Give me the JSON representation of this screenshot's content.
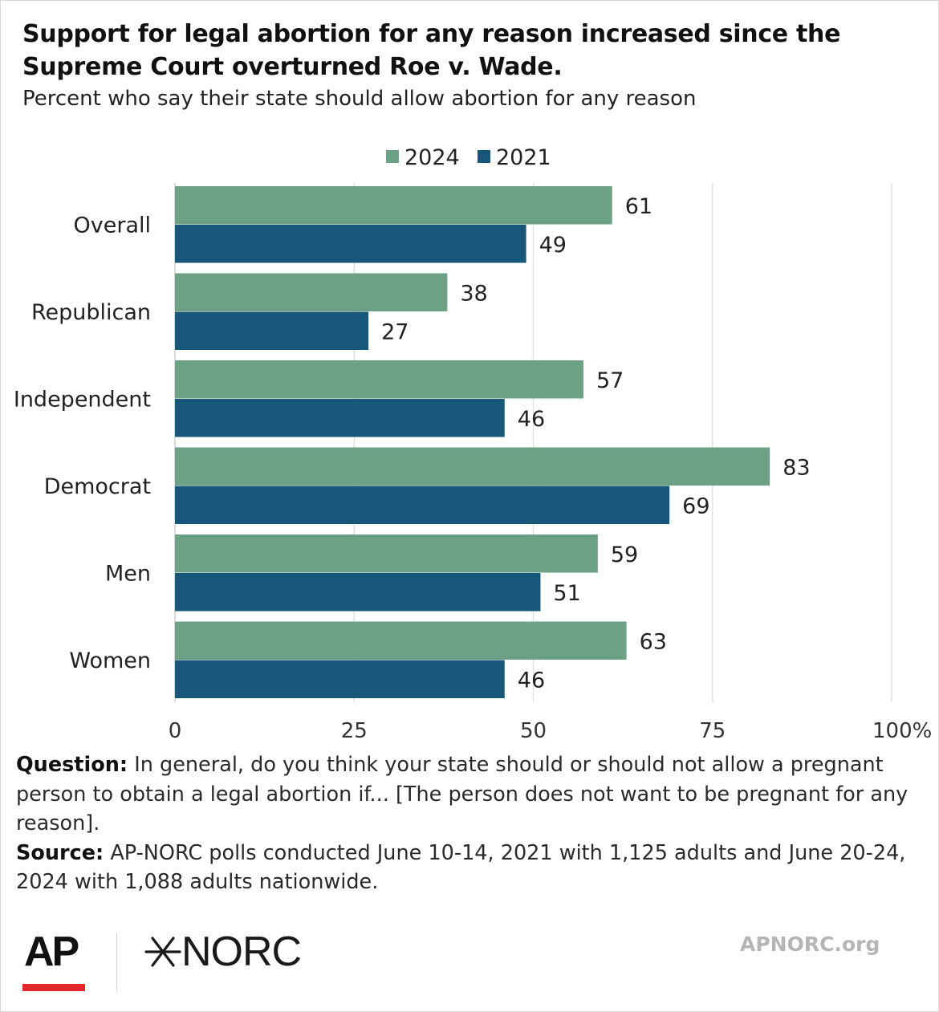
{
  "title": "Support for legal abortion for any reason increased since the Supreme Court overturned Roe v. Wade.",
  "subtitle": "Percent who say their state should allow abortion for any reason",
  "chart_data": {
    "type": "bar",
    "orientation": "horizontal",
    "categories": [
      "Overall",
      "Republican",
      "Independent",
      "Democrat",
      "Men",
      "Women"
    ],
    "series": [
      {
        "name": "2024",
        "values": [
          61,
          38,
          57,
          83,
          59,
          63
        ],
        "color": "#6da185"
      },
      {
        "name": "2021",
        "values": [
          49,
          27,
          46,
          69,
          51,
          46
        ],
        "color": "#17577a"
      }
    ],
    "xlim": [
      0,
      100
    ],
    "xticks": [
      "0",
      "25",
      "50",
      "75",
      "100%"
    ],
    "grid": true,
    "legend": "top-center",
    "data_labels": true
  },
  "notes": {
    "question_label": "Question:",
    "question_text": " In general, do you think your state should or should not allow a pregnant person to obtain a legal abortion if... [The person does not want to be pregnant for any reason].",
    "source_label": "Source:",
    "source_text": " AP-NORC polls conducted June 10-14, 2021 with 1,125 adults and June 20-24, 2024 with 1,088 adults nationwide."
  },
  "footer": {
    "ap_logo": "AP",
    "ap_accent": "#e5262a",
    "norc_logo": "NORC",
    "norc_icon": "asterisk-icon",
    "site": "APNORC.org"
  }
}
